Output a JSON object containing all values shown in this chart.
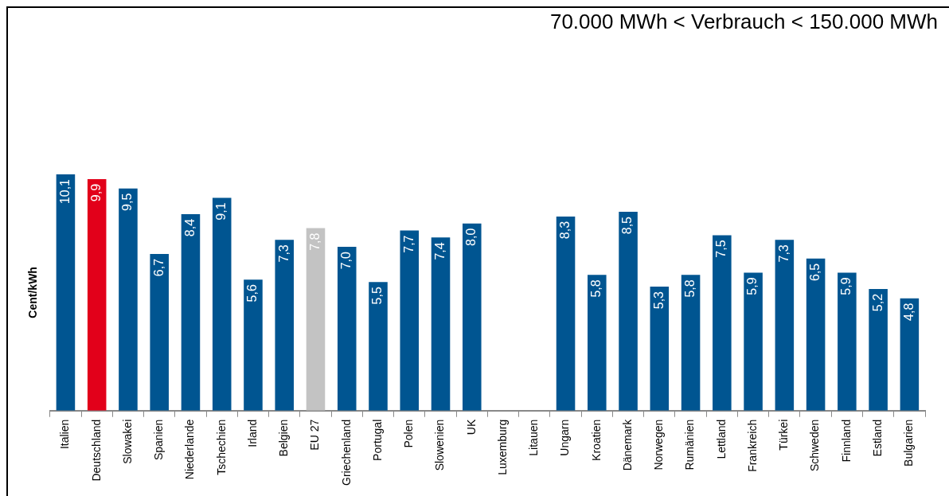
{
  "chart_data": {
    "type": "bar",
    "title": "70.000 MWh < Verbrauch < 150.000 MWh",
    "ylabel": "Cent/kWh",
    "categories": [
      "Italien",
      "Deutschland",
      "Slowakei",
      "Spanien",
      "Niederlande",
      "Tschechien",
      "Irland",
      "Belgien",
      "EU 27",
      "Griechenland",
      "Portugal",
      "Polen",
      "Slowenien",
      "UK",
      "Luxemburg",
      "Litauen",
      "Ungarn",
      "Kroatien",
      "Dänemark",
      "Norwegen",
      "Rumänien",
      "Lettland",
      "Frankreich",
      "Türkei",
      "Schweden",
      "Finnland",
      "Estland",
      "Bulgarien"
    ],
    "values": [
      10.1,
      9.9,
      9.5,
      6.7,
      8.4,
      9.1,
      5.6,
      7.3,
      7.8,
      7.0,
      5.5,
      7.7,
      7.4,
      8.0,
      null,
      null,
      8.3,
      5.8,
      8.5,
      5.3,
      5.8,
      7.5,
      5.9,
      7.3,
      6.5,
      5.9,
      5.2,
      4.8
    ],
    "value_labels": [
      "10,1",
      "9,9",
      "9,5",
      "6,7",
      "8,4",
      "9,1",
      "5,6",
      "7,3",
      "7,8",
      "7,0",
      "5,5",
      "7,7",
      "7,4",
      "8,0",
      null,
      null,
      "8,3",
      "5,8",
      "8,5",
      "5,3",
      "5,8",
      "7,5",
      "5,9",
      "7,3",
      "6,5",
      "5,9",
      "5,2",
      "4,8"
    ],
    "colors": [
      "#005591",
      "#e2001a",
      "#005591",
      "#005591",
      "#005591",
      "#005591",
      "#005591",
      "#005591",
      "#c3c3c3",
      "#005591",
      "#005591",
      "#005591",
      "#005591",
      "#005591",
      "#005591",
      "#005591",
      "#005591",
      "#005591",
      "#005591",
      "#005591",
      "#005591",
      "#005591",
      "#005591",
      "#005591",
      "#005591",
      "#005591",
      "#005591",
      "#005591"
    ],
    "tick_labels": "x",
    "grid": false,
    "legend": false
  }
}
